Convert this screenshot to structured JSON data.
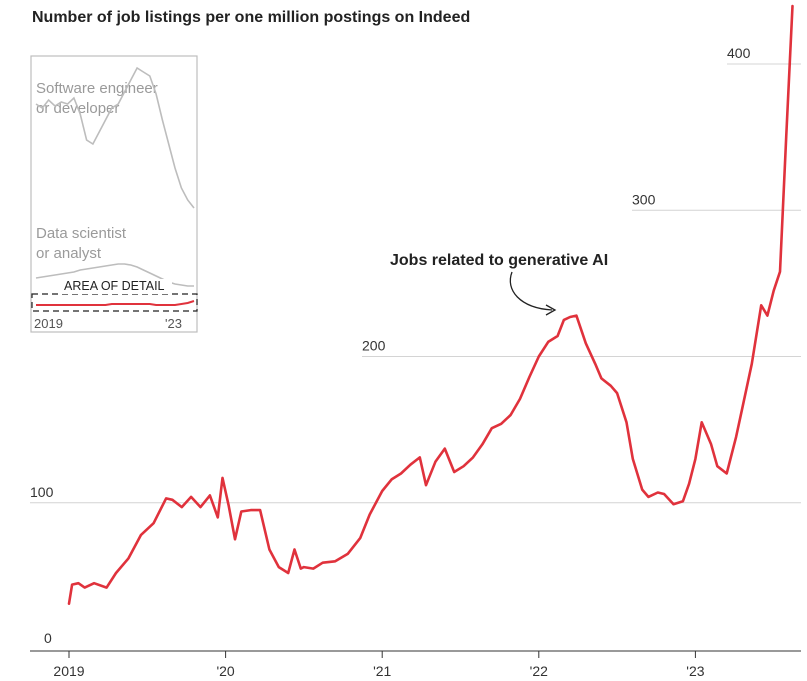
{
  "chart_data": {
    "type": "line",
    "title": "Number of job listings per one million postings on Indeed",
    "xlabel": "",
    "ylabel": "",
    "x_ticks": [
      "2019",
      "'20",
      "'21",
      "'22",
      "'23"
    ],
    "y_ticks": [
      "0",
      "100",
      "200",
      "300",
      "400"
    ],
    "ylim": [
      0,
      400
    ],
    "grid": true,
    "series": [
      {
        "name": "",
        "color": "#e0323c",
        "x": [
          2019.0,
          2019.02,
          2019.06,
          2019.1,
          2019.16,
          2019.24,
          2019.3,
          2019.38,
          2019.46,
          2019.54,
          2019.62,
          2019.66,
          2019.72,
          2019.78,
          2019.84,
          2019.9,
          2019.95,
          2019.98,
          2020.02,
          2020.06,
          2020.1,
          2020.16,
          2020.22,
          2020.28,
          2020.34,
          2020.4,
          2020.44,
          2020.48,
          2020.5,
          2020.56,
          2020.62,
          2020.7,
          2020.78,
          2020.86,
          2020.92,
          2021.0,
          2021.06,
          2021.12,
          2021.18,
          2021.24,
          2021.28,
          2021.34,
          2021.4,
          2021.46,
          2021.52,
          2021.58,
          2021.64,
          2021.7,
          2021.76,
          2021.82,
          2021.88,
          2021.94,
          2022.0,
          2022.06,
          2022.12,
          2022.16,
          2022.2,
          2022.24,
          2022.3,
          2022.36,
          2022.4,
          2022.46,
          2022.5,
          2022.56,
          2022.6,
          2022.66,
          2022.7,
          2022.76,
          2022.8,
          2022.86,
          2022.92,
          2022.96,
          2023.0,
          2023.04,
          2023.1,
          2023.14,
          2023.2,
          2023.26,
          2023.3,
          2023.36,
          2023.42,
          2023.46,
          2023.5,
          2023.54,
          2023.58,
          2023.62
        ],
        "values": [
          31,
          44,
          45,
          42,
          45,
          42,
          52,
          62,
          78,
          86,
          103,
          102,
          97,
          104,
          97,
          105,
          90,
          117,
          98,
          75,
          94,
          95,
          95,
          68,
          56,
          52,
          68,
          55,
          56,
          55,
          59,
          60,
          65,
          76,
          92,
          108,
          116,
          120,
          126,
          131,
          112,
          128,
          137,
          121,
          125,
          131,
          140,
          151,
          154,
          160,
          171,
          186,
          200,
          210,
          214,
          225,
          227,
          228,
          209,
          195,
          185,
          180,
          175,
          155,
          130,
          109,
          104,
          107,
          106,
          99,
          101,
          113,
          130,
          155,
          140,
          125,
          120,
          145,
          165,
          195,
          235,
          228,
          245,
          258,
          350,
          440
        ]
      }
    ],
    "annotation": "Jobs related to generative AI",
    "inset": {
      "label_software": "Software engineer or developer",
      "label_software_line1": "Software engineer",
      "label_software_line2": "or developer",
      "label_data": "Data scientist or analyst",
      "label_data_line1": "Data scientist",
      "label_data_line2": "or analyst",
      "area_label": "AREA OF DETAIL",
      "x_start": "2019",
      "x_end": "'23",
      "software_values": [
        60,
        58,
        62,
        59,
        61,
        60,
        63,
        55,
        42,
        40,
        46,
        52,
        58,
        60,
        66,
        72,
        78,
        76,
        74,
        65,
        52,
        40,
        28,
        18,
        12,
        8
      ],
      "data_values": [
        22,
        23,
        24,
        25,
        26,
        27,
        28,
        30,
        31,
        32,
        33,
        34,
        35,
        36,
        36,
        35,
        33,
        30,
        27,
        24,
        21,
        18,
        16,
        15,
        14,
        14
      ],
      "genai_values": [
        5,
        5,
        5,
        5,
        5,
        5,
        5,
        5,
        5,
        5,
        5,
        5,
        6,
        6,
        6,
        6,
        6,
        6,
        6,
        5,
        5,
        5,
        5,
        6,
        7,
        9
      ]
    }
  }
}
